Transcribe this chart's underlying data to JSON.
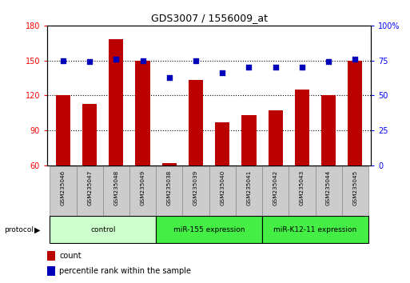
{
  "title": "GDS3007 / 1556009_at",
  "samples": [
    "GSM235046",
    "GSM235047",
    "GSM235048",
    "GSM235049",
    "GSM235038",
    "GSM235039",
    "GSM235040",
    "GSM235041",
    "GSM235042",
    "GSM235043",
    "GSM235044",
    "GSM235045"
  ],
  "counts": [
    120,
    113,
    168,
    150,
    62,
    133,
    97,
    103,
    107,
    125,
    120,
    150
  ],
  "percentiles": [
    75,
    74,
    76,
    75,
    63,
    75,
    66,
    70,
    70,
    70,
    74,
    76
  ],
  "ylim_left": [
    60,
    180
  ],
  "ylim_right": [
    0,
    100
  ],
  "yticks_left": [
    60,
    90,
    120,
    150,
    180
  ],
  "yticks_right": [
    0,
    25,
    50,
    75,
    100
  ],
  "bar_color": "#bb0000",
  "dot_color": "#0000bb",
  "protocol_groups": [
    {
      "label": "control",
      "start": 0,
      "end": 4,
      "color": "#ccffcc"
    },
    {
      "label": "miR-155 expression",
      "start": 4,
      "end": 8,
      "color": "#44ee44"
    },
    {
      "label": "miR-K12-11 expression",
      "start": 8,
      "end": 12,
      "color": "#44ee44"
    }
  ],
  "bar_width": 0.55,
  "sample_box_color": "#cccccc",
  "sample_box_edge": "#888888"
}
